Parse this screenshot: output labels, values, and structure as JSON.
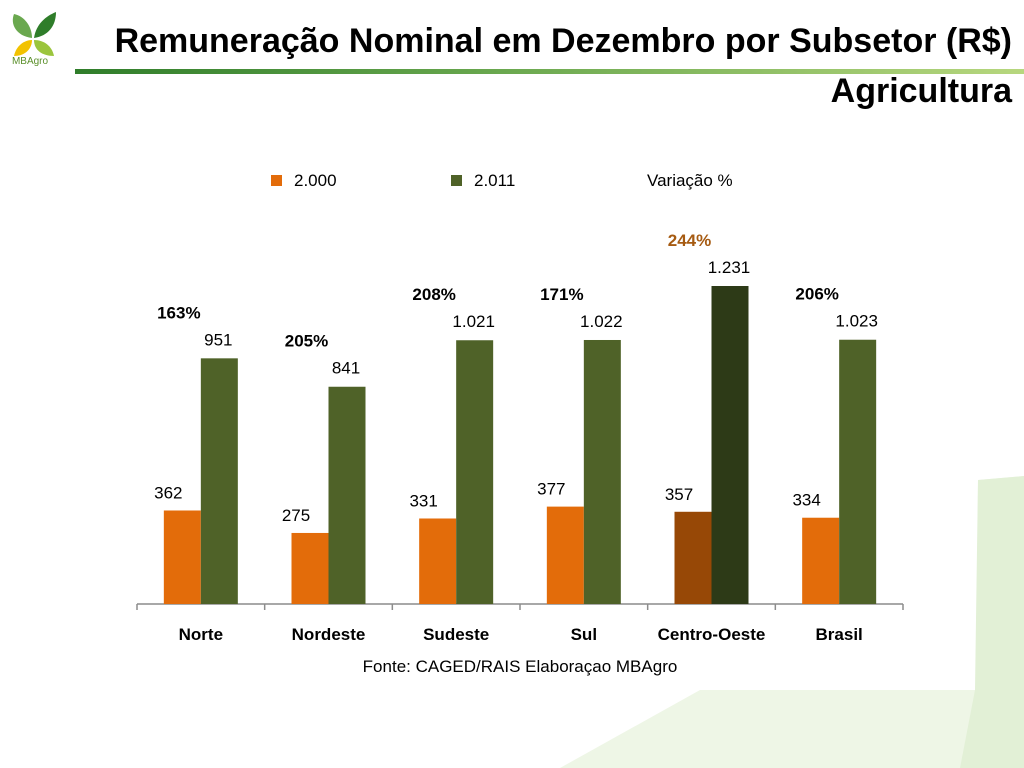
{
  "header": {
    "title": "Remuneração Nominal em Dezembro por Subsetor (R$)",
    "subtitle": "Agricultura",
    "logo_text": "MBAgro"
  },
  "colors": {
    "series_2000": "#e36c0a",
    "series_2011": "#4f6228",
    "highlight_2000": "#974806",
    "highlight_2011": "#2d3a17",
    "variation_highlight": "#a65b12",
    "variation": "#000000",
    "accent": "#6aa84f"
  },
  "chart_data": {
    "type": "bar",
    "categories": [
      "Norte",
      "Nordeste",
      "Sudeste",
      "Sul",
      "Centro-Oeste",
      "Brasil"
    ],
    "series": [
      {
        "name": "2.000",
        "values": [
          362,
          275,
          331,
          377,
          357,
          334
        ],
        "labels": [
          "362",
          "275",
          "331",
          "377",
          "357",
          "334"
        ]
      },
      {
        "name": "2.011",
        "values": [
          951,
          841,
          1021,
          1022,
          1231,
          1023
        ],
        "labels": [
          "951",
          "841",
          "1.021",
          "1.022",
          "1.231",
          "1.023"
        ]
      }
    ],
    "variation_legend": "Variação %",
    "variation_labels": [
      "163%",
      "205%",
      "208%",
      "171%",
      "244%",
      "206%"
    ],
    "highlight_category": "Centro-Oeste",
    "source": "Fonte: CAGED/RAIS Elaboraçao MBAgro",
    "ylim": [
      0,
      1300
    ],
    "grid": false,
    "legend_position": "top"
  }
}
